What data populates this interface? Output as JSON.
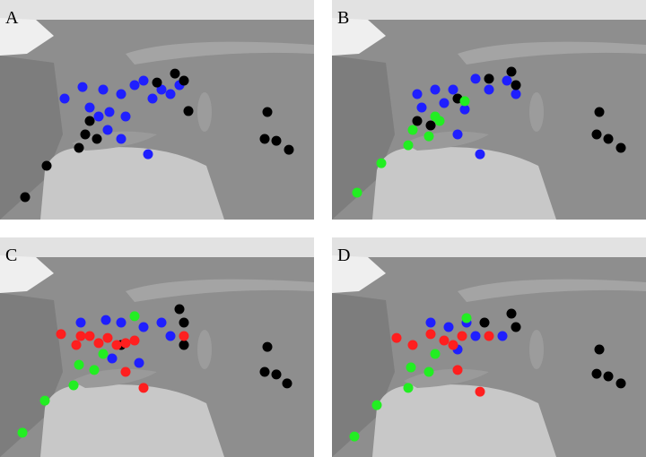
{
  "panels": [
    {
      "label": "A",
      "groups": [
        {
          "color": "#1f1fff",
          "points": [
            [
              -6.2,
              49.2
            ],
            [
              1.8,
              52.8
            ],
            [
              5,
              46.4
            ],
            [
              11,
              52
            ],
            [
              13.8,
              45
            ],
            [
              19,
              50.6
            ],
            [
              21,
              43.6
            ],
            [
              25,
              53.4
            ],
            [
              29,
              54.8
            ],
            [
              33,
              49.2
            ],
            [
              37,
              52
            ],
            [
              41,
              50.6
            ],
            [
              45,
              53.4
            ],
            [
              9,
              43.6
            ],
            [
              13,
              39.4
            ],
            [
              19,
              36.6
            ],
            [
              31,
              31.8
            ]
          ]
        },
        {
          "color": "#000000",
          "points": [
            [
              43,
              57
            ],
            [
              47,
              54.8
            ],
            [
              35,
              54.2
            ],
            [
              49,
              45.3
            ],
            [
              5,
              42.2
            ],
            [
              3,
              38
            ],
            [
              8.2,
              36.6
            ],
            [
              0.2,
              33.8
            ],
            [
              -14.2,
              28.2
            ],
            [
              -23.8,
              18.4
            ],
            [
              84.2,
              45
            ],
            [
              83,
              36.6
            ],
            [
              88.2,
              36
            ],
            [
              93.8,
              33.2
            ]
          ]
        }
      ]
    },
    {
      "label": "B",
      "groups": [
        {
          "color": "#1f1fff",
          "points": [
            [
              3,
              50.6
            ],
            [
              11,
              52
            ],
            [
              15,
              47.8
            ],
            [
              19,
              52
            ],
            [
              24.2,
              45.8
            ],
            [
              29,
              55.4
            ],
            [
              35,
              52
            ],
            [
              43,
              54.8
            ],
            [
              47,
              50.6
            ],
            [
              21,
              38
            ],
            [
              31,
              31.8
            ],
            [
              5,
              46.4
            ]
          ]
        },
        {
          "color": "#000000",
          "points": [
            [
              45,
              57.6
            ],
            [
              35,
              55.4
            ],
            [
              21,
              49.2
            ],
            [
              3,
              42.2
            ],
            [
              9,
              40.8
            ],
            [
              47,
              53.4
            ],
            [
              84.2,
              45
            ],
            [
              83,
              38
            ],
            [
              88.2,
              36.6
            ],
            [
              93.8,
              33.8
            ]
          ]
        },
        {
          "color": "#22ee22",
          "points": [
            [
              24.2,
              48.4
            ],
            [
              11,
              43.6
            ],
            [
              1,
              39.4
            ],
            [
              8.2,
              37.4
            ],
            [
              -1,
              34.6
            ],
            [
              -13,
              29
            ],
            [
              -23.8,
              19.8
            ],
            [
              13,
              42.2
            ]
          ]
        }
      ]
    },
    {
      "label": "C",
      "groups": [
        {
          "color": "#1f1fff",
          "points": [
            [
              1,
              53.4
            ],
            [
              12.2,
              54.2
            ],
            [
              19,
              53.4
            ],
            [
              29,
              52
            ],
            [
              37,
              53.4
            ],
            [
              41,
              49.2
            ],
            [
              15,
              42.2
            ],
            [
              27,
              40.8
            ]
          ]
        },
        {
          "color": "#000000",
          "points": [
            [
              45,
              57.6
            ],
            [
              47,
              53.4
            ],
            [
              19,
              46.4
            ],
            [
              47,
              46.4
            ],
            [
              84.2,
              45.8
            ],
            [
              83,
              38
            ],
            [
              88.2,
              37.2
            ],
            [
              93,
              34.4
            ]
          ]
        },
        {
          "color": "#22ee22",
          "points": [
            [
              25,
              55.4
            ],
            [
              11,
              43.6
            ],
            [
              0.2,
              40.2
            ],
            [
              7,
              38.6
            ],
            [
              -2.2,
              33.8
            ],
            [
              -15,
              29
            ],
            [
              -25,
              19
            ]
          ]
        },
        {
          "color": "#ff1f1f",
          "points": [
            [
              -7.8,
              49.8
            ],
            [
              -1,
              46.4
            ],
            [
              5,
              49.2
            ],
            [
              9,
              47
            ],
            [
              13,
              48.6
            ],
            [
              17,
              46.4
            ],
            [
              21,
              47
            ],
            [
              25,
              47.8
            ],
            [
              47,
              49.2
            ],
            [
              21,
              38
            ],
            [
              29,
              33
            ],
            [
              1,
              49.2
            ]
          ]
        }
      ]
    },
    {
      "label": "D",
      "groups": [
        {
          "color": "#1f1fff",
          "points": [
            [
              9,
              53.4
            ],
            [
              17,
              52
            ],
            [
              25,
              53.4
            ],
            [
              29,
              49.2
            ],
            [
              21,
              45
            ],
            [
              41,
              49.2
            ]
          ]
        },
        {
          "color": "#000000",
          "points": [
            [
              45,
              56.2
            ],
            [
              47,
              52
            ],
            [
              33,
              53.4
            ],
            [
              84.2,
              45
            ],
            [
              83,
              37.4
            ],
            [
              88.2,
              36.6
            ],
            [
              93.8,
              34.4
            ]
          ]
        },
        {
          "color": "#22ee22",
          "points": [
            [
              25,
              54.8
            ],
            [
              11,
              43.6
            ],
            [
              0.2,
              39.4
            ],
            [
              8.2,
              38
            ],
            [
              -1,
              33
            ],
            [
              -15,
              27.6
            ],
            [
              -25,
              17.8
            ]
          ]
        },
        {
          "color": "#ff1f1f",
          "points": [
            [
              -6.2,
              48.6
            ],
            [
              1,
              46.4
            ],
            [
              9,
              49.8
            ],
            [
              15,
              47.8
            ],
            [
              19,
              46.4
            ],
            [
              23,
              49.2
            ],
            [
              35,
              49.2
            ],
            [
              21,
              38.6
            ],
            [
              31,
              31.8
            ]
          ]
        }
      ]
    }
  ]
}
